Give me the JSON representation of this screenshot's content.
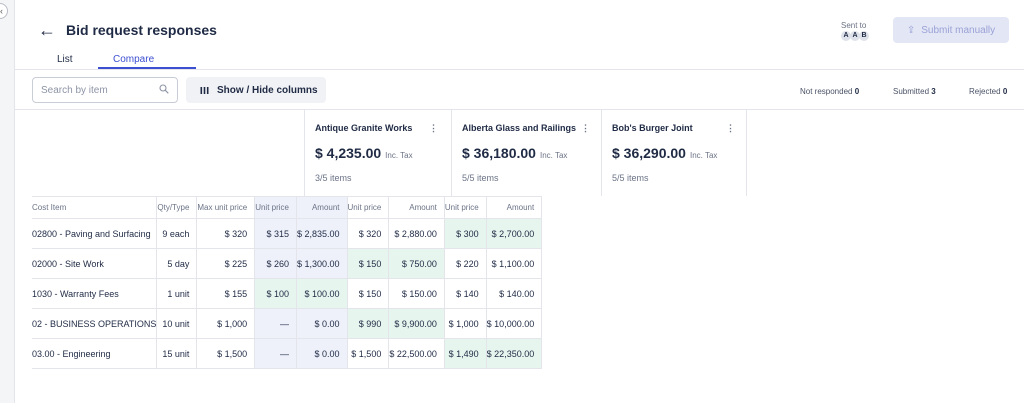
{
  "header": {
    "title": "Bid request responses",
    "tabs": [
      {
        "label": "List"
      },
      {
        "label": "Compare"
      }
    ],
    "sent_to_label": "Sent to",
    "sent_to_avatars": [
      "A",
      "A",
      "B"
    ],
    "submit_label": "Submit manually"
  },
  "toolbar": {
    "search_placeholder": "Search by item",
    "show_hide_label": "Show / Hide columns",
    "stats": [
      {
        "label": "Not responded",
        "count": "0"
      },
      {
        "label": "Submitted",
        "count": "3"
      },
      {
        "label": "Rejected",
        "count": "0"
      }
    ]
  },
  "vendors": [
    {
      "name": "Antique Granite Works",
      "total": "$ 4,235.00",
      "tax_label": "Inc. Tax",
      "items": "3/5 items"
    },
    {
      "name": "Alberta Glass and Railings",
      "total": "$ 36,180.00",
      "tax_label": "Inc. Tax",
      "items": "5/5 items"
    },
    {
      "name": "Bob's Burger Joint",
      "total": "$ 36,290.00",
      "tax_label": "Inc. Tax",
      "items": "5/5 items"
    }
  ],
  "columns": {
    "cost_item": "Cost Item",
    "qty_type": "Qty/Type",
    "max_unit_price": "Max unit price",
    "unit_price": "Unit price",
    "amount": "Amount"
  },
  "rows": [
    {
      "item": "02800 - Paving and Surfacing",
      "qty": "9 each",
      "max": "$ 320",
      "bids": [
        {
          "unit": "$ 315",
          "amount": "$ 2,835.00"
        },
        {
          "unit": "$ 320",
          "amount": "$ 2,880.00"
        },
        {
          "unit": "$ 300",
          "amount": "$ 2,700.00"
        }
      ],
      "best": 2
    },
    {
      "item": "02000 - Site Work",
      "qty": "5 day",
      "max": "$ 225",
      "bids": [
        {
          "unit": "$ 260",
          "amount": "$ 1,300.00"
        },
        {
          "unit": "$ 150",
          "amount": "$ 750.00"
        },
        {
          "unit": "$ 220",
          "amount": "$ 1,100.00"
        }
      ],
      "best": 1
    },
    {
      "item": "1030 - Warranty Fees",
      "qty": "1 unit",
      "max": "$ 155",
      "bids": [
        {
          "unit": "$ 100",
          "amount": "$ 100.00"
        },
        {
          "unit": "$ 150",
          "amount": "$ 150.00"
        },
        {
          "unit": "$ 140",
          "amount": "$ 140.00"
        }
      ],
      "best": 0
    },
    {
      "item": "02 - BUSINESS OPERATIONS",
      "qty": "10 unit",
      "max": "$ 1,000",
      "bids": [
        {
          "unit": "—",
          "amount": "$ 0.00"
        },
        {
          "unit": "$ 990",
          "amount": "$ 9,900.00"
        },
        {
          "unit": "$ 1,000",
          "amount": "$ 10,000.00"
        }
      ],
      "best": 1
    },
    {
      "item": "03.00 - Engineering",
      "qty": "15 unit",
      "max": "$ 1,500",
      "bids": [
        {
          "unit": "—",
          "amount": "$ 0.00"
        },
        {
          "unit": "$ 1,500",
          "amount": "$ 22,500.00"
        },
        {
          "unit": "$ 1,490",
          "amount": "$ 22,350.00"
        }
      ],
      "best": 2
    }
  ]
}
